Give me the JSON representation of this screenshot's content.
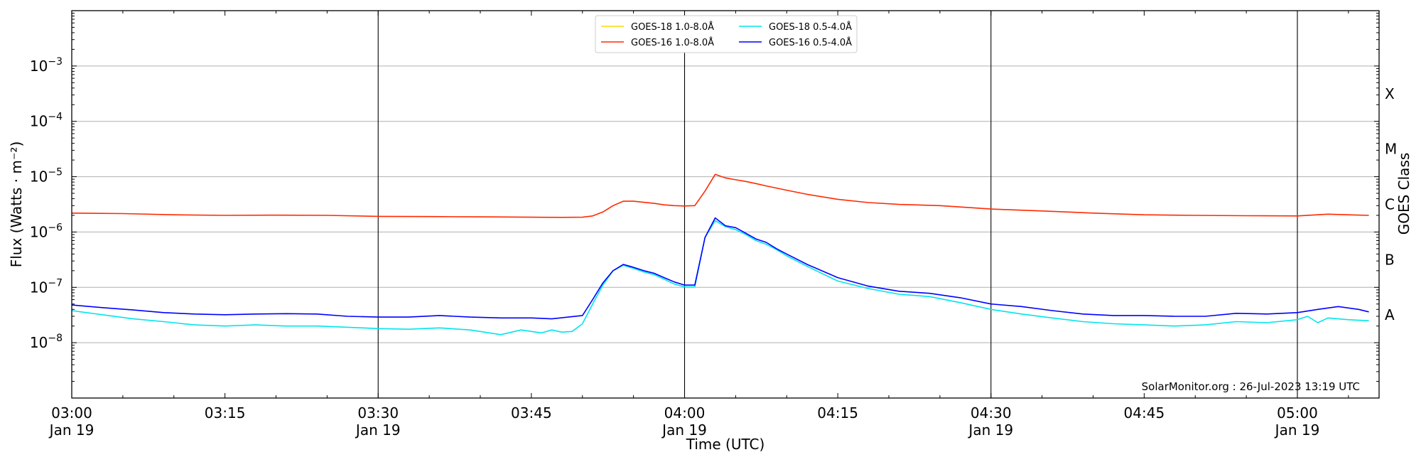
{
  "chart_data": {
    "type": "line",
    "xlabel": "Time (UTC)",
    "ylabel": "Flux (Watts · m⁻²)",
    "y2label": "GOES Class",
    "yscale": "log",
    "ylim": [
      1e-09,
      0.01
    ],
    "xlim": [
      "03:00",
      "05:08"
    ],
    "x_ticks": [
      {
        "time": "03:00",
        "label": "03:00",
        "date": "Jan 19"
      },
      {
        "time": "03:15",
        "label": "03:15",
        "date": ""
      },
      {
        "time": "03:30",
        "label": "03:30",
        "date": "Jan 19"
      },
      {
        "time": "03:45",
        "label": "03:45",
        "date": ""
      },
      {
        "time": "04:00",
        "label": "04:00",
        "date": "Jan 19"
      },
      {
        "time": "04:15",
        "label": "04:15",
        "date": ""
      },
      {
        "time": "04:30",
        "label": "04:30",
        "date": "Jan 19"
      },
      {
        "time": "04:45",
        "label": "04:45",
        "date": ""
      },
      {
        "time": "05:00",
        "label": "05:00",
        "date": "Jan 19"
      }
    ],
    "y_ticks": [
      {
        "value": 1e-08,
        "exp": "−8"
      },
      {
        "value": 1e-07,
        "exp": "−7"
      },
      {
        "value": 1e-06,
        "exp": "−6"
      },
      {
        "value": 1e-05,
        "exp": "−5"
      },
      {
        "value": 0.0001,
        "exp": "−4"
      },
      {
        "value": 0.001,
        "exp": "−3"
      }
    ],
    "goes_classes": [
      {
        "label": "A",
        "value": 1e-08
      },
      {
        "label": "B",
        "value": 1e-07
      },
      {
        "label": "C",
        "value": 1e-06
      },
      {
        "label": "M",
        "value": 1e-05
      },
      {
        "label": "X",
        "value": 0.0001
      }
    ],
    "vlines": [
      "03:30",
      "04:00",
      "04:30",
      "05:00"
    ],
    "grid": "horizontal",
    "legend_position": "top-center",
    "series": [
      {
        "name": "GOES-18 1.0-8.0Å",
        "color": "#ffd700",
        "points": []
      },
      {
        "name": "GOES-16 1.0-8.0Å",
        "color": "#ff2a00",
        "points": [
          [
            "03:00",
            2.2e-06
          ],
          [
            "03:05",
            2.15e-06
          ],
          [
            "03:10",
            2.05e-06
          ],
          [
            "03:15",
            2e-06
          ],
          [
            "03:20",
            2.02e-06
          ],
          [
            "03:25",
            2e-06
          ],
          [
            "03:30",
            1.92e-06
          ],
          [
            "03:35",
            1.9e-06
          ],
          [
            "03:40",
            1.88e-06
          ],
          [
            "03:45",
            1.85e-06
          ],
          [
            "03:48",
            1.84e-06
          ],
          [
            "03:50",
            1.85e-06
          ],
          [
            "03:51",
            1.95e-06
          ],
          [
            "03:52",
            2.3e-06
          ],
          [
            "03:53",
            3e-06
          ],
          [
            "03:54",
            3.6e-06
          ],
          [
            "03:55",
            3.6e-06
          ],
          [
            "03:56",
            3.45e-06
          ],
          [
            "03:57",
            3.3e-06
          ],
          [
            "03:58",
            3.1e-06
          ],
          [
            "03:59",
            3e-06
          ],
          [
            "04:00",
            2.95e-06
          ],
          [
            "04:01",
            3e-06
          ],
          [
            "04:02",
            5.5e-06
          ],
          [
            "04:03",
            1.1e-05
          ],
          [
            "04:04",
            9.5e-06
          ],
          [
            "04:05",
            8.8e-06
          ],
          [
            "04:06",
            8.2e-06
          ],
          [
            "04:07",
            7.5e-06
          ],
          [
            "04:08",
            6.8e-06
          ],
          [
            "04:10",
            5.7e-06
          ],
          [
            "04:12",
            4.8e-06
          ],
          [
            "04:15",
            3.9e-06
          ],
          [
            "04:18",
            3.4e-06
          ],
          [
            "04:21",
            3.15e-06
          ],
          [
            "04:25",
            3e-06
          ],
          [
            "04:30",
            2.6e-06
          ],
          [
            "04:35",
            2.4e-06
          ],
          [
            "04:40",
            2.2e-06
          ],
          [
            "04:45",
            2.05e-06
          ],
          [
            "04:50",
            2e-06
          ],
          [
            "04:55",
            1.97e-06
          ],
          [
            "05:00",
            1.95e-06
          ],
          [
            "05:03",
            2.1e-06
          ],
          [
            "05:05",
            2.05e-06
          ],
          [
            "05:07",
            2e-06
          ]
        ]
      },
      {
        "name": "GOES-18 0.5-4.0Å",
        "color": "#00e5ee",
        "points": [
          [
            "03:00",
            3.8e-08
          ],
          [
            "03:03",
            3.2e-08
          ],
          [
            "03:06",
            2.7e-08
          ],
          [
            "03:09",
            2.4e-08
          ],
          [
            "03:12",
            2.1e-08
          ],
          [
            "03:15",
            2e-08
          ],
          [
            "03:18",
            2.1e-08
          ],
          [
            "03:21",
            2e-08
          ],
          [
            "03:24",
            2e-08
          ],
          [
            "03:27",
            1.9e-08
          ],
          [
            "03:30",
            1.8e-08
          ],
          [
            "03:33",
            1.75e-08
          ],
          [
            "03:36",
            1.85e-08
          ],
          [
            "03:39",
            1.7e-08
          ],
          [
            "03:42",
            1.4e-08
          ],
          [
            "03:44",
            1.7e-08
          ],
          [
            "03:46",
            1.5e-08
          ],
          [
            "03:47",
            1.7e-08
          ],
          [
            "03:48",
            1.55e-08
          ],
          [
            "03:49",
            1.6e-08
          ],
          [
            "03:50",
            2.2e-08
          ],
          [
            "03:51",
            5e-08
          ],
          [
            "03:52",
            1.1e-07
          ],
          [
            "03:53",
            2e-07
          ],
          [
            "03:54",
            2.5e-07
          ],
          [
            "03:55",
            2.2e-07
          ],
          [
            "03:56",
            1.9e-07
          ],
          [
            "03:57",
            1.7e-07
          ],
          [
            "03:58",
            1.4e-07
          ],
          [
            "03:59",
            1.15e-07
          ],
          [
            "04:00",
            1.02e-07
          ],
          [
            "04:01",
            1.02e-07
          ],
          [
            "04:02",
            8e-07
          ],
          [
            "04:03",
            1.6e-06
          ],
          [
            "04:04",
            1.25e-06
          ],
          [
            "04:05",
            1.1e-06
          ],
          [
            "04:06",
            9e-07
          ],
          [
            "04:07",
            7e-07
          ],
          [
            "04:08",
            6e-07
          ],
          [
            "04:09",
            4.8e-07
          ],
          [
            "04:10",
            3.7e-07
          ],
          [
            "04:12",
            2.4e-07
          ],
          [
            "04:15",
            1.3e-07
          ],
          [
            "04:18",
            9.5e-08
          ],
          [
            "04:21",
            7.5e-08
          ],
          [
            "04:24",
            6.8e-08
          ],
          [
            "04:27",
            5.3e-08
          ],
          [
            "04:30",
            4e-08
          ],
          [
            "04:33",
            3.3e-08
          ],
          [
            "04:36",
            2.8e-08
          ],
          [
            "04:39",
            2.4e-08
          ],
          [
            "04:42",
            2.2e-08
          ],
          [
            "04:45",
            2.1e-08
          ],
          [
            "04:48",
            2e-08
          ],
          [
            "04:51",
            2.1e-08
          ],
          [
            "04:54",
            2.4e-08
          ],
          [
            "04:57",
            2.3e-08
          ],
          [
            "05:00",
            2.6e-08
          ],
          [
            "05:01",
            3e-08
          ],
          [
            "05:02",
            2.3e-08
          ],
          [
            "05:03",
            2.8e-08
          ],
          [
            "05:05",
            2.6e-08
          ],
          [
            "05:07",
            2.5e-08
          ]
        ]
      },
      {
        "name": "GOES-16 0.5-4.0Å",
        "color": "#0000ff",
        "points": [
          [
            "03:00",
            4.8e-08
          ],
          [
            "03:03",
            4.3e-08
          ],
          [
            "03:06",
            3.9e-08
          ],
          [
            "03:09",
            3.5e-08
          ],
          [
            "03:12",
            3.3e-08
          ],
          [
            "03:15",
            3.2e-08
          ],
          [
            "03:18",
            3.3e-08
          ],
          [
            "03:21",
            3.35e-08
          ],
          [
            "03:24",
            3.3e-08
          ],
          [
            "03:27",
            3e-08
          ],
          [
            "03:30",
            2.9e-08
          ],
          [
            "03:33",
            2.9e-08
          ],
          [
            "03:36",
            3.1e-08
          ],
          [
            "03:39",
            2.9e-08
          ],
          [
            "03:42",
            2.8e-08
          ],
          [
            "03:45",
            2.8e-08
          ],
          [
            "03:47",
            2.7e-08
          ],
          [
            "03:50",
            3.1e-08
          ],
          [
            "03:51",
            6e-08
          ],
          [
            "03:52",
            1.2e-07
          ],
          [
            "03:53",
            2e-07
          ],
          [
            "03:54",
            2.6e-07
          ],
          [
            "03:55",
            2.3e-07
          ],
          [
            "03:56",
            2e-07
          ],
          [
            "03:57",
            1.8e-07
          ],
          [
            "03:58",
            1.5e-07
          ],
          [
            "03:59",
            1.25e-07
          ],
          [
            "04:00",
            1.1e-07
          ],
          [
            "04:01",
            1.1e-07
          ],
          [
            "04:02",
            8e-07
          ],
          [
            "04:03",
            1.8e-06
          ],
          [
            "04:04",
            1.3e-06
          ],
          [
            "04:05",
            1.2e-06
          ],
          [
            "04:06",
            9.5e-07
          ],
          [
            "04:07",
            7.5e-07
          ],
          [
            "04:08",
            6.5e-07
          ],
          [
            "04:09",
            5e-07
          ],
          [
            "04:10",
            4e-07
          ],
          [
            "04:12",
            2.6e-07
          ],
          [
            "04:15",
            1.5e-07
          ],
          [
            "04:18",
            1.05e-07
          ],
          [
            "04:21",
            8.5e-08
          ],
          [
            "04:24",
            7.8e-08
          ],
          [
            "04:27",
            6.5e-08
          ],
          [
            "04:30",
            5e-08
          ],
          [
            "04:33",
            4.5e-08
          ],
          [
            "04:36",
            3.8e-08
          ],
          [
            "04:39",
            3.3e-08
          ],
          [
            "04:42",
            3.1e-08
          ],
          [
            "04:45",
            3.1e-08
          ],
          [
            "04:48",
            3e-08
          ],
          [
            "04:51",
            3e-08
          ],
          [
            "04:54",
            3.4e-08
          ],
          [
            "04:57",
            3.3e-08
          ],
          [
            "05:00",
            3.5e-08
          ],
          [
            "05:02",
            4e-08
          ],
          [
            "05:04",
            4.5e-08
          ],
          [
            "05:06",
            4e-08
          ],
          [
            "05:07",
            3.6e-08
          ]
        ]
      }
    ]
  },
  "watermark": "SolarMonitor.org : 26-Jul-2023 13:19 UTC"
}
